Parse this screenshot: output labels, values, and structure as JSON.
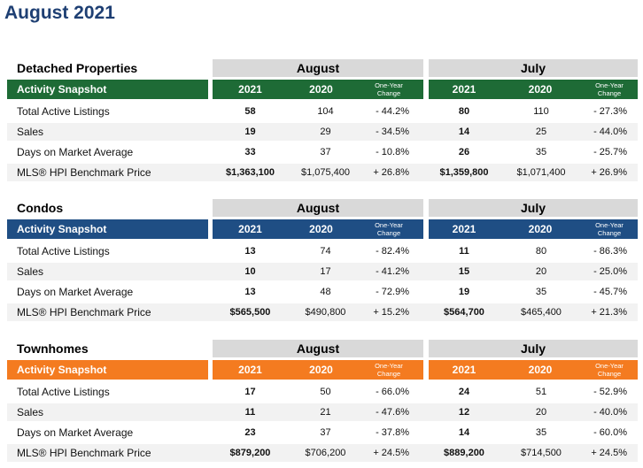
{
  "page_title": "August 2021",
  "labels": {
    "activity_snapshot": "Activity Snapshot",
    "period_a": "August",
    "period_b": "July",
    "year_cur": "2021",
    "year_prev": "2020",
    "change_line1": "One-Year",
    "change_line2": "Change"
  },
  "row_labels": [
    "Total Active Listings",
    "Sales",
    "Days on Market Average",
    "MLS® HPI Benchmark Price"
  ],
  "sections": [
    {
      "title": "Detached Properties",
      "color": "#1e6b36",
      "rows": [
        {
          "aug_2021": "58",
          "aug_2020": "104",
          "aug_change": "- 44.2%",
          "jul_2021": "80",
          "jul_2020": "110",
          "jul_change": "- 27.3%"
        },
        {
          "aug_2021": "19",
          "aug_2020": "29",
          "aug_change": "- 34.5%",
          "jul_2021": "14",
          "jul_2020": "25",
          "jul_change": "- 44.0%"
        },
        {
          "aug_2021": "33",
          "aug_2020": "37",
          "aug_change": "- 10.8%",
          "jul_2021": "26",
          "jul_2020": "35",
          "jul_change": "- 25.7%"
        },
        {
          "aug_2021": "$1,363,100",
          "aug_2020": "$1,075,400",
          "aug_change": "+ 26.8%",
          "jul_2021": "$1,359,800",
          "jul_2020": "$1,071,400",
          "jul_change": "+ 26.9%"
        }
      ]
    },
    {
      "title": "Condos",
      "color": "#1f4e84",
      "rows": [
        {
          "aug_2021": "13",
          "aug_2020": "74",
          "aug_change": "- 82.4%",
          "jul_2021": "11",
          "jul_2020": "80",
          "jul_change": "- 86.3%"
        },
        {
          "aug_2021": "10",
          "aug_2020": "17",
          "aug_change": "- 41.2%",
          "jul_2021": "15",
          "jul_2020": "20",
          "jul_change": "- 25.0%"
        },
        {
          "aug_2021": "13",
          "aug_2020": "48",
          "aug_change": "- 72.9%",
          "jul_2021": "19",
          "jul_2020": "35",
          "jul_change": "- 45.7%"
        },
        {
          "aug_2021": "$565,500",
          "aug_2020": "$490,800",
          "aug_change": "+ 15.2%",
          "jul_2021": "$564,700",
          "jul_2020": "$465,400",
          "jul_change": "+ 21.3%"
        }
      ]
    },
    {
      "title": "Townhomes",
      "color": "#f47b20",
      "rows": [
        {
          "aug_2021": "17",
          "aug_2020": "50",
          "aug_change": "- 66.0%",
          "jul_2021": "24",
          "jul_2020": "51",
          "jul_change": "- 52.9%"
        },
        {
          "aug_2021": "11",
          "aug_2020": "21",
          "aug_change": "- 47.6%",
          "jul_2021": "12",
          "jul_2020": "20",
          "jul_change": "- 40.0%"
        },
        {
          "aug_2021": "23",
          "aug_2020": "37",
          "aug_change": "- 37.8%",
          "jul_2021": "14",
          "jul_2020": "35",
          "jul_change": "- 60.0%"
        },
        {
          "aug_2021": "$879,200",
          "aug_2020": "$706,200",
          "aug_change": "+ 24.5%",
          "jul_2021": "$889,200",
          "jul_2020": "$714,500",
          "jul_change": "+ 24.5%"
        }
      ]
    }
  ]
}
